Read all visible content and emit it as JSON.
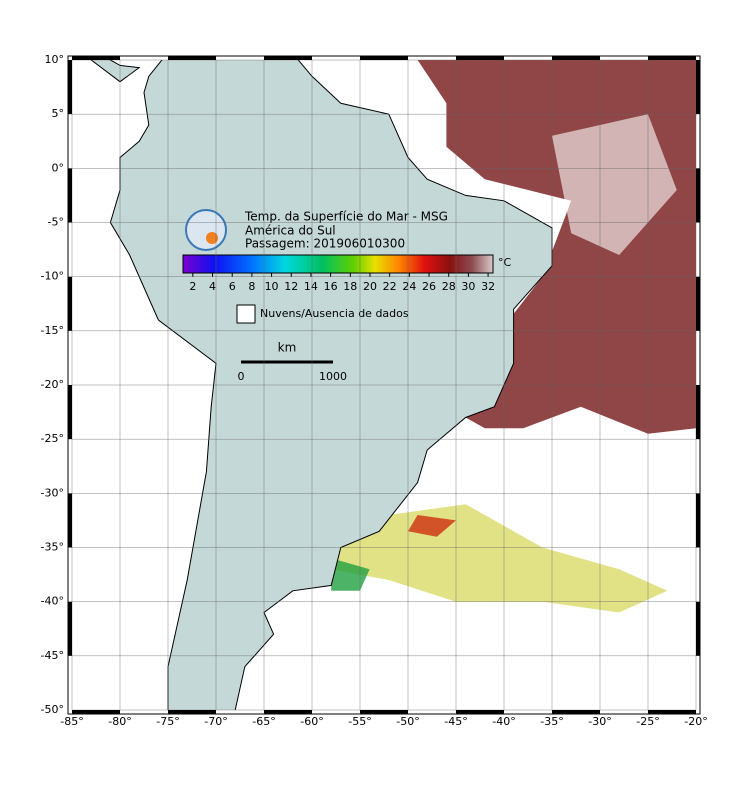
{
  "map": {
    "title": "Temp. da Superfície do Mar - MSG",
    "subtitle": "América do Sul",
    "pass": "Passagem: 201906010300",
    "colorbar": {
      "unit": "°C",
      "range": [
        1,
        32.5
      ],
      "ticks": [
        2,
        4,
        6,
        8,
        10,
        12,
        14,
        16,
        18,
        20,
        22,
        24,
        26,
        28,
        30,
        32
      ]
    },
    "legend": "Nuvens/Ausencia de dados",
    "scale": {
      "unit": "km",
      "start": "0",
      "end": "1000"
    },
    "xlim": [
      -85,
      -20
    ],
    "ylim": [
      -50,
      10
    ],
    "xticks": [
      {
        "value": -85,
        "label": "-85°"
      },
      {
        "value": -80,
        "label": "-80°"
      },
      {
        "value": -75,
        "label": "-75°"
      },
      {
        "value": -70,
        "label": "-70°"
      },
      {
        "value": -65,
        "label": "-65°"
      },
      {
        "value": -60,
        "label": "-60°"
      },
      {
        "value": -55,
        "label": "-55°"
      },
      {
        "value": -50,
        "label": "-50°"
      },
      {
        "value": -45,
        "label": "-45°"
      },
      {
        "value": -40,
        "label": "-40°"
      },
      {
        "value": -35,
        "label": "-35°"
      },
      {
        "value": -30,
        "label": "-30°"
      },
      {
        "value": -25,
        "label": "-25°"
      },
      {
        "value": -20,
        "label": "-20°"
      }
    ],
    "yticks": [
      {
        "value": 10,
        "label": "10°"
      },
      {
        "value": 5,
        "label": "5°"
      },
      {
        "value": 0,
        "label": "0°"
      },
      {
        "value": -5,
        "label": "-5°"
      },
      {
        "value": -10,
        "label": "-10°"
      },
      {
        "value": -15,
        "label": "-15°"
      },
      {
        "value": -20,
        "label": "-20°"
      },
      {
        "value": -25,
        "label": "-25°"
      },
      {
        "value": -30,
        "label": "-30°"
      },
      {
        "value": -35,
        "label": "-35°"
      },
      {
        "value": -40,
        "label": "-40°"
      },
      {
        "value": -45,
        "label": "-45°"
      },
      {
        "value": -50,
        "label": "-50°"
      }
    ]
  }
}
